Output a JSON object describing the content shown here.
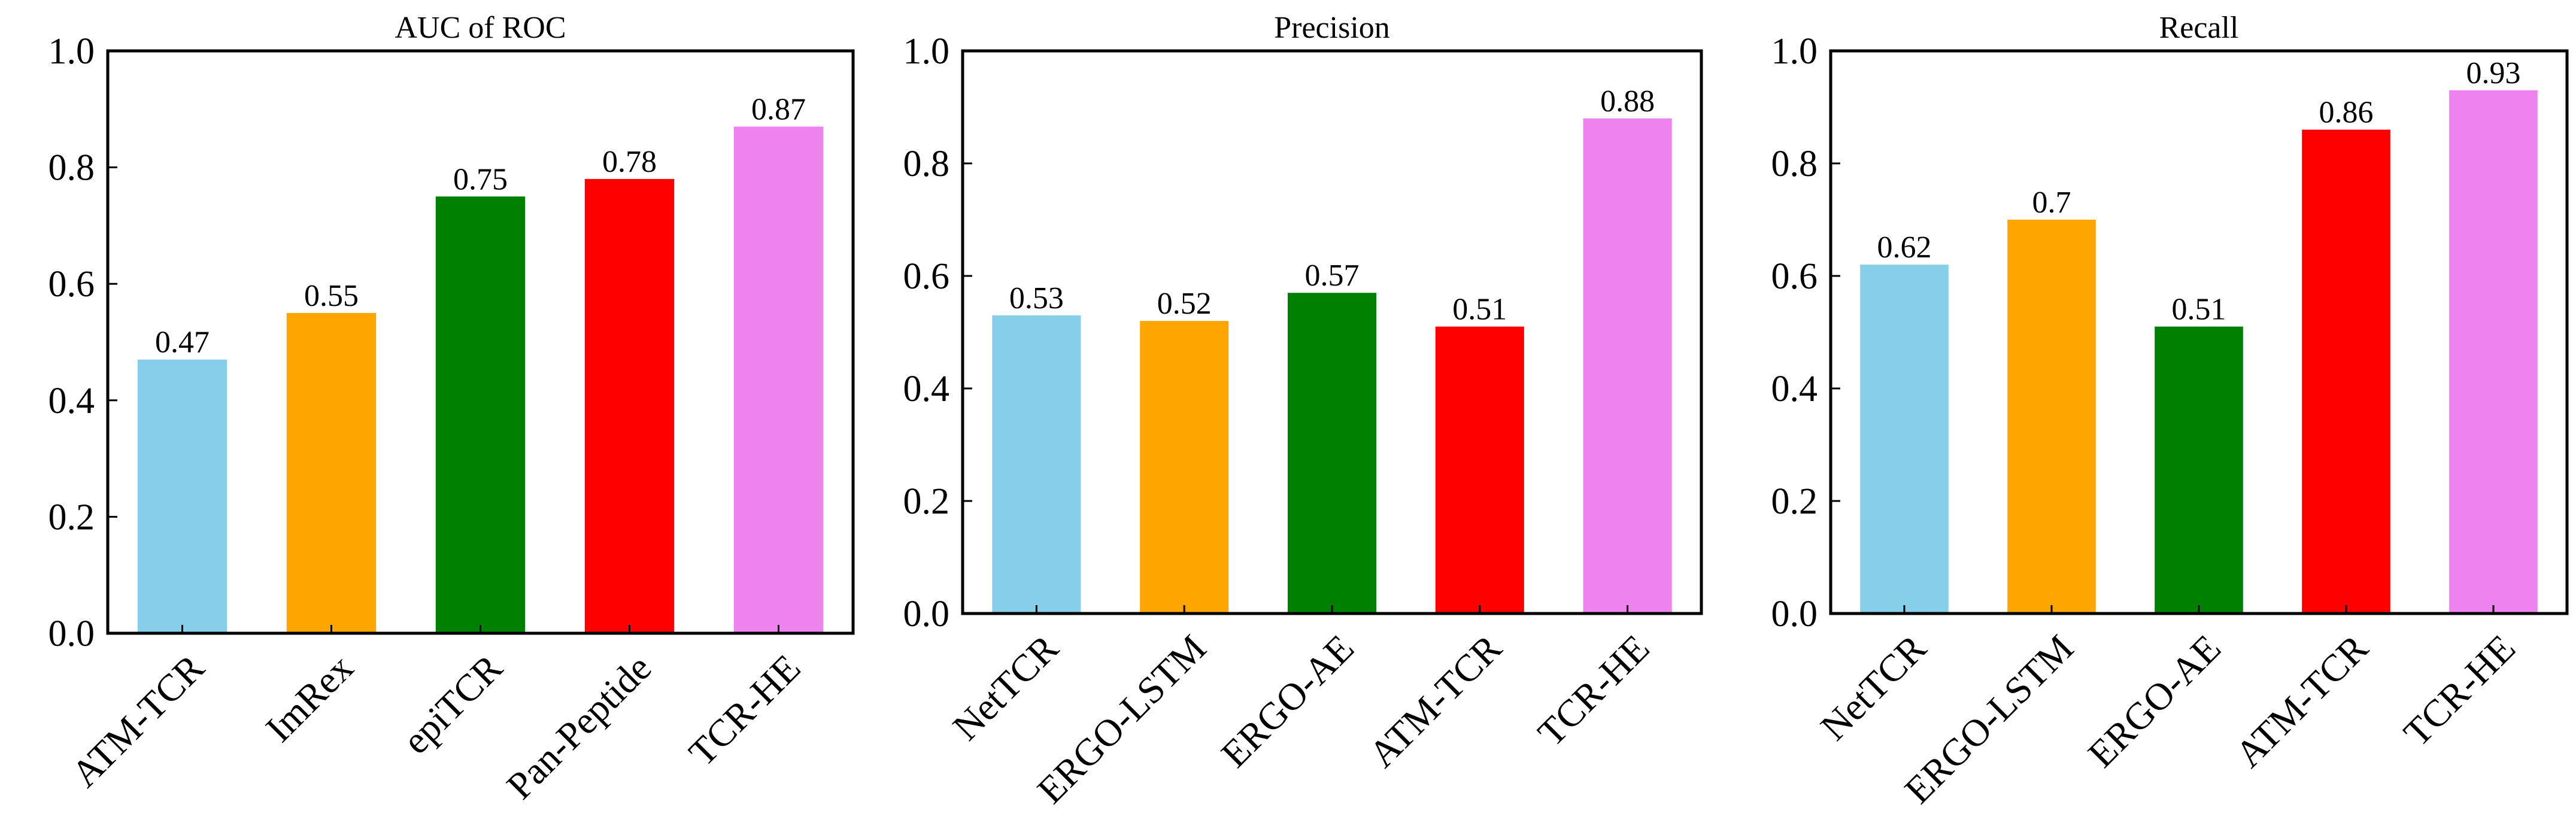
{
  "chart_data": [
    {
      "type": "bar",
      "title": "AUC of ROC",
      "xlabel": "",
      "ylabel": "",
      "ylim": [
        0,
        1.0
      ],
      "yticks": [
        "0.0",
        "0.2",
        "0.4",
        "0.6",
        "0.8",
        "1.0"
      ],
      "grid": false,
      "categories": [
        "ATM-TCR",
        "ImRex",
        "epiTCR",
        "Pan-Peptide",
        "TCR-HE"
      ],
      "values": [
        0.47,
        0.55,
        0.75,
        0.78,
        0.87
      ],
      "value_labels": [
        "0.47",
        "0.55",
        "0.75",
        "0.78",
        "0.87"
      ],
      "colors": [
        "#87CEEB",
        "#FFA500",
        "#008000",
        "#FF0000",
        "#EE82EE"
      ]
    },
    {
      "type": "bar",
      "title": "Precision",
      "xlabel": "",
      "ylabel": "",
      "ylim": [
        0,
        1.0
      ],
      "yticks": [
        "0.0",
        "0.2",
        "0.4",
        "0.6",
        "0.8",
        "1.0"
      ],
      "grid": false,
      "categories": [
        "NetTCR",
        "ERGO-LSTM",
        "ERGO-AE",
        "ATM-TCR",
        "TCR-HE"
      ],
      "values": [
        0.53,
        0.52,
        0.57,
        0.51,
        0.88
      ],
      "value_labels": [
        "0.53",
        "0.52",
        "0.57",
        "0.51",
        "0.88"
      ],
      "colors": [
        "#87CEEB",
        "#FFA500",
        "#008000",
        "#FF0000",
        "#EE82EE"
      ]
    },
    {
      "type": "bar",
      "title": "Recall",
      "xlabel": "",
      "ylabel": "",
      "ylim": [
        0,
        1.0
      ],
      "yticks": [
        "0.0",
        "0.2",
        "0.4",
        "0.6",
        "0.8",
        "1.0"
      ],
      "grid": false,
      "categories": [
        "NetTCR",
        "ERGO-LSTM",
        "ERGO-AE",
        "ATM-TCR",
        "TCR-HE"
      ],
      "values": [
        0.62,
        0.7,
        0.51,
        0.86,
        0.93
      ],
      "value_labels": [
        "0.62",
        "0.7",
        "0.51",
        "0.86",
        "0.93"
      ],
      "colors": [
        "#87CEEB",
        "#FFA500",
        "#008000",
        "#FF0000",
        "#EE82EE"
      ]
    }
  ]
}
